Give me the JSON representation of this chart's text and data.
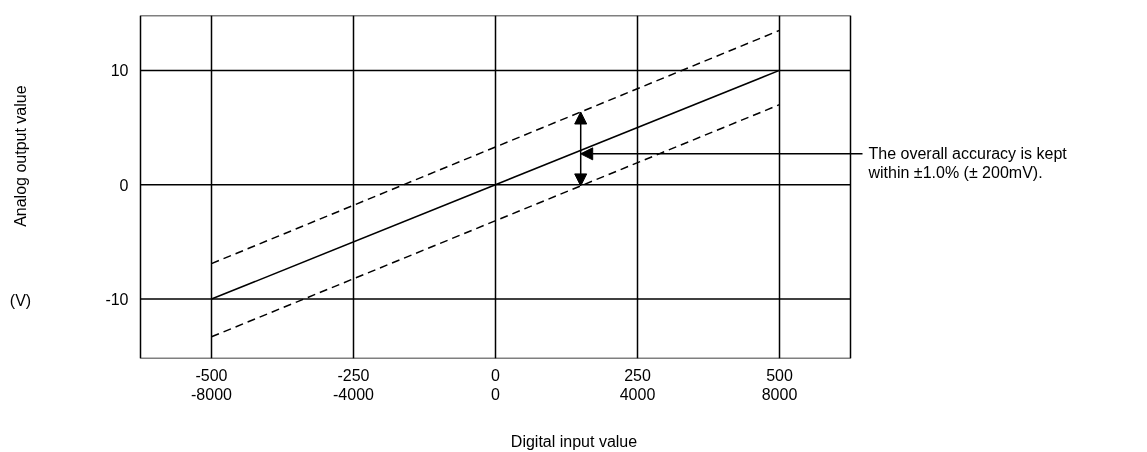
{
  "chart_data": {
    "type": "line",
    "xlabel": "Digital input value",
    "ylabel": "Analog output value",
    "xlim": [
      -625,
      625
    ],
    "ylim": [
      -15.2,
      14.8
    ],
    "xticks": [
      -500,
      -250,
      0,
      250,
      500
    ],
    "x2lim": [
      -10000,
      10000
    ],
    "x2ticks": [
      -8000,
      -4000,
      0,
      4000,
      8000
    ],
    "yticks": [
      -10,
      0,
      10
    ],
    "grid": true,
    "x": [
      -500,
      500
    ],
    "series": [
      {
        "color": "#000000",
        "line_style": "solid",
        "values": [
          -10,
          10
        ]
      },
      {
        "color": "#000000",
        "line_style": "dashed",
        "values": [
          -6.9,
          13.5
        ]
      },
      {
        "color": "#000000",
        "line_style": "dashed",
        "values": [
          -13.3,
          7.0
        ]
      }
    ],
    "annotations": [
      "(V)",
      {
        "text": "The overall accuracy is kept\nwithin ±1.0% (± 200mV).",
        "x": 150,
        "y": 2.7
      }
    ]
  }
}
